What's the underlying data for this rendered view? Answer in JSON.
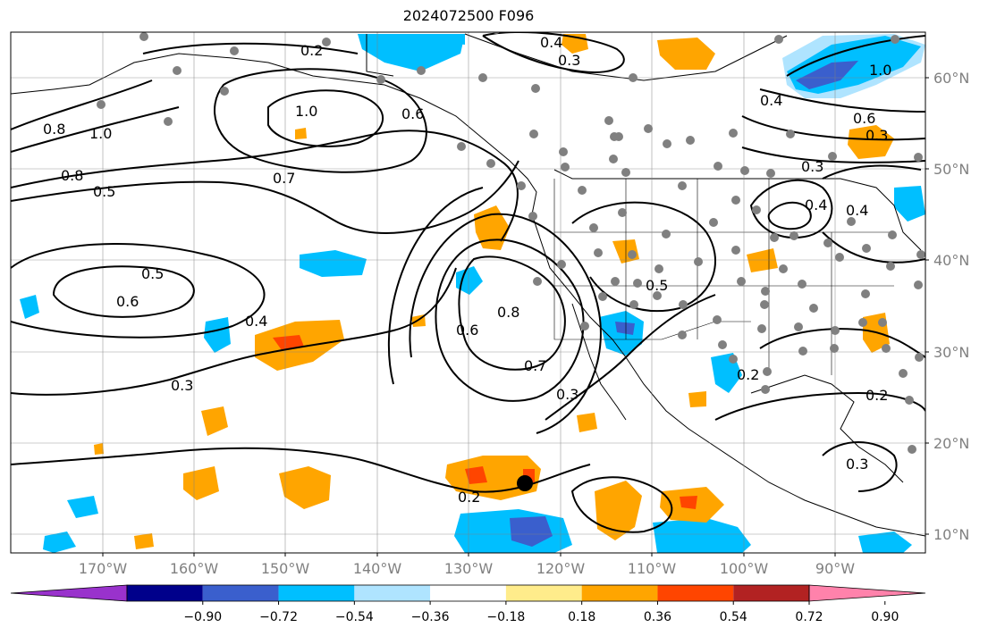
{
  "title": "2024072500 F096",
  "lat_labels": [
    "60°N",
    "50°N",
    "40°N",
    "30°N",
    "20°N",
    "10°N"
  ],
  "lon_labels": [
    "170°W",
    "160°W",
    "150°W",
    "140°W",
    "130°W",
    "120°W",
    "110°W",
    "100°W",
    "90°W"
  ],
  "colorbar": {
    "colors": [
      "#9932cc",
      "#00008b",
      "#3a5fcd",
      "#00bfff",
      "#afe4ff",
      "#ffffff",
      "#ffec8b",
      "#ffa500",
      "#ff4500",
      "#b22222",
      "#ff82ab"
    ],
    "labels": [
      "−0.90",
      "−0.72",
      "−0.54",
      "−0.36",
      "−0.18",
      "0.18",
      "0.36",
      "0.54",
      "0.72",
      "0.90"
    ]
  },
  "contour_labels": [
    "0.2",
    "0.4",
    "0.3",
    "1.0",
    "0.6",
    "0.8",
    "1.0",
    "0.8",
    "0.5",
    "0.7",
    "0.5",
    "0.6",
    "0.4",
    "0.3",
    "0.6",
    "0.8",
    "0.7",
    "0.3",
    "0.2",
    "0.5",
    "0.2",
    "0.3",
    "0.2",
    "0.4",
    "0.3",
    "0.4",
    "1.0",
    "0.6",
    "0.4",
    "0.3"
  ]
}
